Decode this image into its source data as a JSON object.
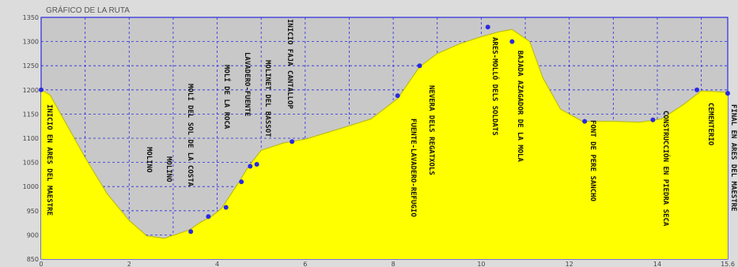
{
  "chart_data": {
    "type": "area",
    "title": "GRÁFICO DE LA RUTA",
    "xlabel": "",
    "ylabel": "",
    "xlim": [
      0,
      15.6
    ],
    "ylim": [
      850,
      1350
    ],
    "grid": true,
    "fill_color": "#ffff00",
    "line_color": "#2a2ae0",
    "marker_color": "#2a2ae0",
    "y_ticks": [
      "850",
      "900",
      "950",
      "1000",
      "1050",
      "1100",
      "1150",
      "1200",
      "1250",
      "1300",
      "1350"
    ],
    "y_tick_values": [
      850,
      900,
      950,
      1000,
      1050,
      1100,
      1150,
      1200,
      1250,
      1300,
      1350
    ],
    "x_ticks": [
      "0",
      "2",
      "4",
      "6",
      "8",
      "10",
      "12",
      "14",
      "15.6"
    ],
    "x_tick_values": [
      0,
      2,
      4,
      6,
      8,
      10,
      12,
      14,
      15.6
    ],
    "profile": [
      [
        0,
        1200
      ],
      [
        0.2,
        1190
      ],
      [
        0.6,
        1125
      ],
      [
        1.0,
        1060
      ],
      [
        1.5,
        985
      ],
      [
        2.0,
        930
      ],
      [
        2.4,
        898
      ],
      [
        2.8,
        893
      ],
      [
        3.2,
        905
      ],
      [
        3.4,
        912
      ],
      [
        3.6,
        925
      ],
      [
        3.9,
        940
      ],
      [
        4.1,
        955
      ],
      [
        4.5,
        1010
      ],
      [
        4.7,
        1040
      ],
      [
        5.0,
        1075
      ],
      [
        5.5,
        1090
      ],
      [
        6.0,
        1098
      ],
      [
        6.8,
        1120
      ],
      [
        7.5,
        1140
      ],
      [
        8.1,
        1182
      ],
      [
        8.6,
        1248
      ],
      [
        9.0,
        1275
      ],
      [
        9.5,
        1295
      ],
      [
        10.0,
        1310
      ],
      [
        10.4,
        1320
      ],
      [
        10.7,
        1325
      ],
      [
        11.1,
        1300
      ],
      [
        11.4,
        1225
      ],
      [
        11.8,
        1160
      ],
      [
        12.3,
        1135
      ],
      [
        13.0,
        1135
      ],
      [
        13.6,
        1133
      ],
      [
        14.1,
        1140
      ],
      [
        14.6,
        1170
      ],
      [
        15.0,
        1198
      ],
      [
        15.6,
        1195
      ]
    ],
    "points": [
      {
        "x": 0.0,
        "y": 1200,
        "label": "INICIO EN ARES DEL MAESTRE"
      },
      {
        "x": 3.4,
        "y": 907,
        "label": "MOLINO"
      },
      {
        "x": 3.8,
        "y": 938,
        "label": "MOLINO"
      },
      {
        "x": 4.2,
        "y": 957,
        "label": "MOLÍ DEL SOL DE LA COSTA"
      },
      {
        "x": 4.55,
        "y": 1010,
        "label": "MOLÍ DE LA ROCA"
      },
      {
        "x": 4.75,
        "y": 1042,
        "label": "LAVADERO-FUENTE"
      },
      {
        "x": 4.9,
        "y": 1046,
        "label": "MOLINET DEL BASSOT"
      },
      {
        "x": 5.7,
        "y": 1093,
        "label": "INICIO FAJA CANTALLOP"
      },
      {
        "x": 8.1,
        "y": 1188,
        "label": "FUENTE-LAVADERO-REFUGIO"
      },
      {
        "x": 8.6,
        "y": 1250,
        "label": "NEVERA DELS REGATXOLS"
      },
      {
        "x": 10.15,
        "y": 1330,
        "label": "ARES-MOLLÓ DELS SOLDATS"
      },
      {
        "x": 10.7,
        "y": 1300,
        "label": "BAJADA AZAGADOR DE LA MOLA"
      },
      {
        "x": 12.35,
        "y": 1135,
        "label": "FONT DE PERE SANCHO"
      },
      {
        "x": 13.9,
        "y": 1138,
        "label": "CONSTRUCCIÓN EN PIEDRA SECA"
      },
      {
        "x": 14.9,
        "y": 1200,
        "label": "CEMENTERIO"
      },
      {
        "x": 15.6,
        "y": 1193,
        "label": "FINAL EN ARES DEL MAESTRE"
      }
    ]
  }
}
